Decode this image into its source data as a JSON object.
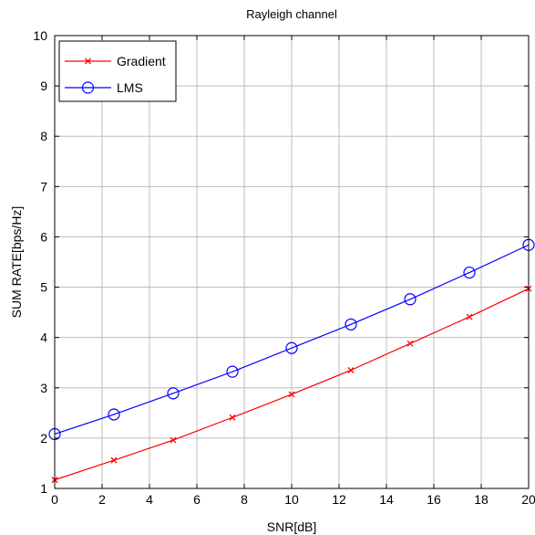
{
  "chart_data": {
    "type": "line",
    "title": "Rayleigh channel",
    "xlabel": "SNR[dB]",
    "ylabel": "SUM RATE[bps/Hz]",
    "xlim": [
      0,
      20
    ],
    "ylim": [
      1,
      10
    ],
    "xticks": [
      "0",
      "2",
      "4",
      "6",
      "8",
      "10",
      "12",
      "14",
      "16",
      "18",
      "20"
    ],
    "yticks": [
      "1",
      "2",
      "3",
      "4",
      "5",
      "6",
      "7",
      "8",
      "9",
      "10"
    ],
    "grid": true,
    "legend_position": "top-left",
    "x": [
      0,
      2.5,
      5,
      7.5,
      10,
      12.5,
      15,
      17.5,
      20
    ],
    "series": [
      {
        "name": "Gradient",
        "color": "#ff0000",
        "marker": "x",
        "values": [
          1.17,
          1.56,
          1.96,
          2.41,
          2.87,
          3.35,
          3.88,
          4.41,
          4.97
        ]
      },
      {
        "name": "LMS",
        "color": "#0000ff",
        "marker": "o",
        "values": [
          2.08,
          2.47,
          2.89,
          3.32,
          3.79,
          4.26,
          4.76,
          5.29,
          5.84
        ]
      }
    ]
  }
}
